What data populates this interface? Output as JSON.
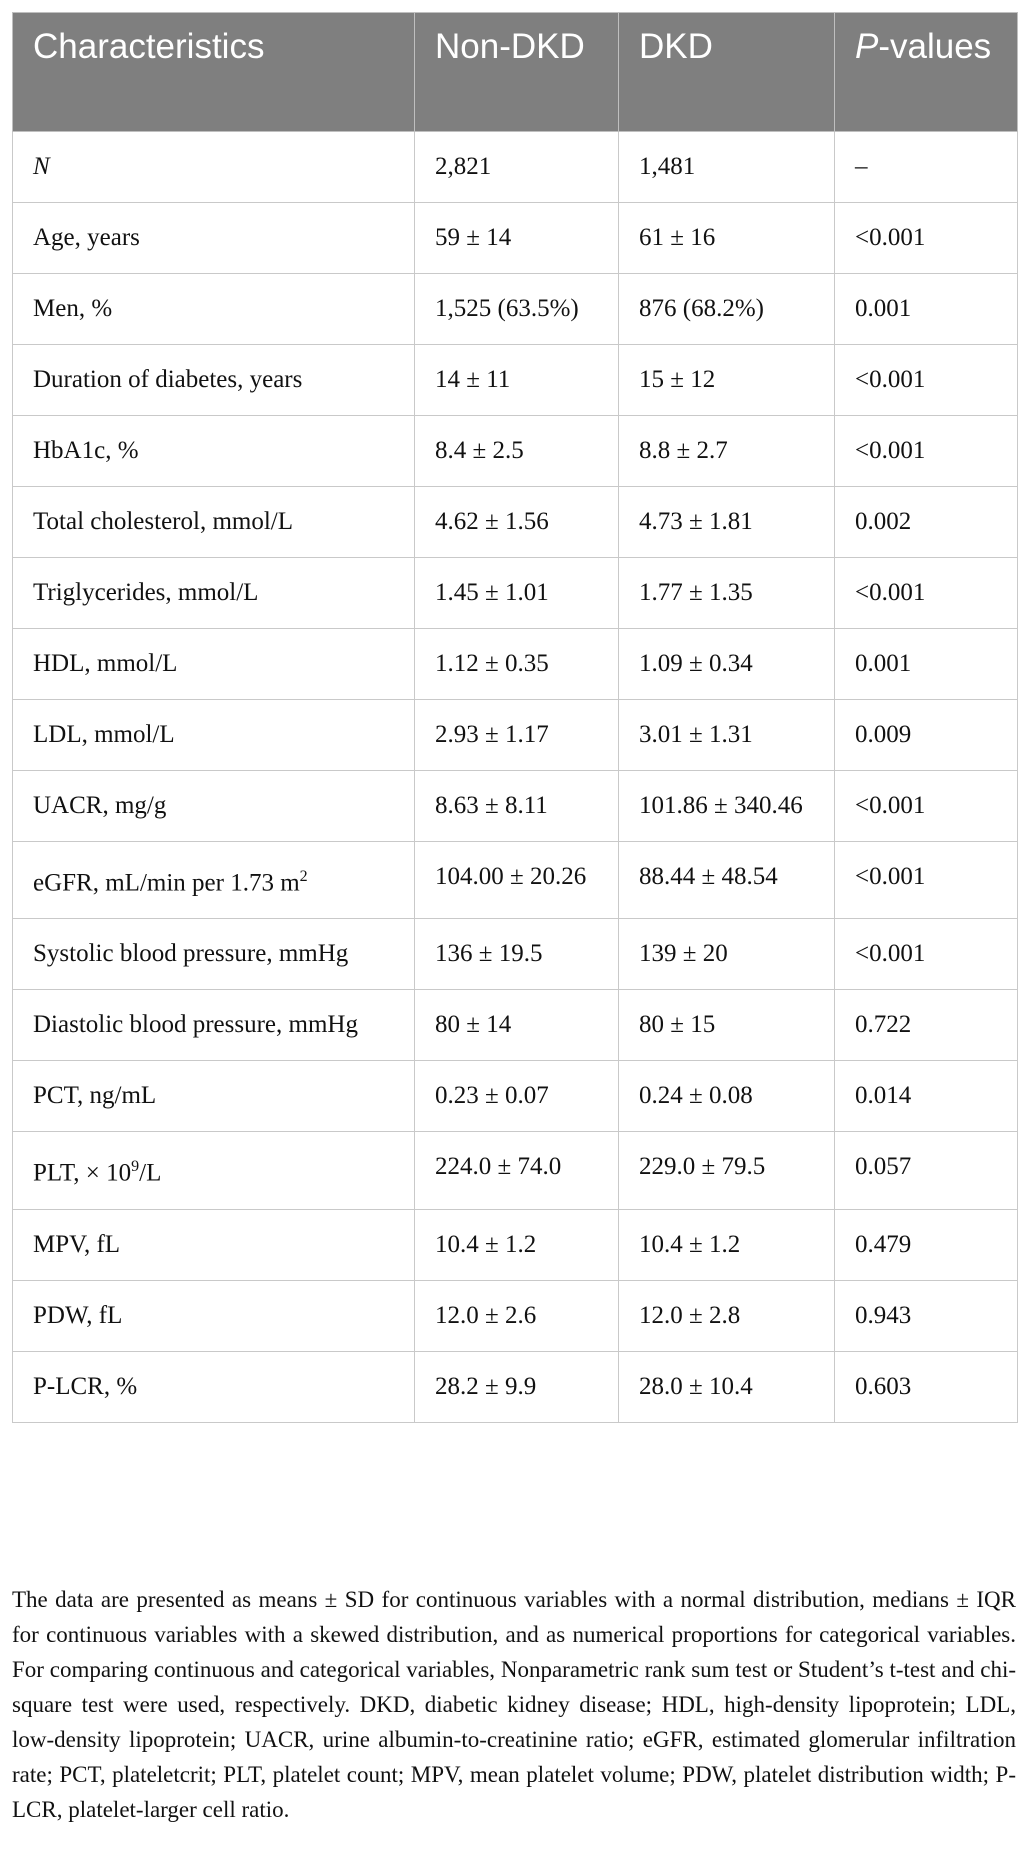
{
  "table": {
    "headers": {
      "characteristics": "Characteristics",
      "non_dkd": "Non-DKD",
      "dkd": "DKD",
      "p_letter": "P",
      "p_rest": "-values"
    },
    "rows": [
      {
        "label": "N",
        "non_dkd": "2,821",
        "dkd": "1,481",
        "p": "–",
        "italic": true
      },
      {
        "label": "Age, years",
        "non_dkd": "59 ± 14",
        "dkd": "61 ± 16",
        "p": "<0.001"
      },
      {
        "label": "Men, %",
        "non_dkd": "1,525 (63.5%)",
        "dkd": "876 (68.2%)",
        "p": "0.001"
      },
      {
        "label": "Duration of diabetes, years",
        "non_dkd": "14 ± 11",
        "dkd": "15 ± 12",
        "p": "<0.001"
      },
      {
        "label": "HbA1c, %",
        "non_dkd": "8.4 ± 2.5",
        "dkd": "8.8 ± 2.7",
        "p": "<0.001"
      },
      {
        "label": "Total cholesterol, mmol/L",
        "non_dkd": "4.62 ± 1.56",
        "dkd": "4.73 ± 1.81",
        "p": "0.002"
      },
      {
        "label": "Triglycerides, mmol/L",
        "non_dkd": "1.45 ± 1.01",
        "dkd": "1.77 ± 1.35",
        "p": "<0.001"
      },
      {
        "label": "HDL, mmol/L",
        "non_dkd": "1.12 ± 0.35",
        "dkd": "1.09 ± 0.34",
        "p": "0.001"
      },
      {
        "label": "LDL, mmol/L",
        "non_dkd": "2.93 ± 1.17",
        "dkd": "3.01 ± 1.31",
        "p": "0.009"
      },
      {
        "label": "UACR, mg/g",
        "non_dkd": "8.63 ± 8.11",
        "dkd": "101.86 ± 340.46",
        "p": "<0.001"
      },
      {
        "label": "eGFR, mL/min per 1.73 m",
        "label_sup": "2",
        "non_dkd": "104.00 ± 20.26",
        "dkd": "88.44 ± 48.54",
        "p": "<0.001"
      },
      {
        "label": "Systolic blood pressure, mmHg",
        "non_dkd": "136 ± 19.5",
        "dkd": "139 ± 20",
        "p": "<0.001"
      },
      {
        "label": "Diastolic blood pressure, mmHg",
        "non_dkd": "80 ± 14",
        "dkd": "80 ± 15",
        "p": "0.722"
      },
      {
        "label": "PCT, ng/mL",
        "non_dkd": "0.23 ± 0.07",
        "dkd": "0.24 ± 0.08",
        "p": "0.014"
      },
      {
        "label": "PLT, × 10",
        "label_sup": "9",
        "label_after": "/L",
        "non_dkd": "224.0 ± 74.0",
        "dkd": "229.0 ± 79.5",
        "p": "0.057"
      },
      {
        "label": "MPV, fL",
        "non_dkd": "10.4 ± 1.2",
        "dkd": "10.4 ± 1.2",
        "p": "0.479"
      },
      {
        "label": "PDW, fL",
        "non_dkd": "12.0 ± 2.6",
        "dkd": "12.0 ± 2.8",
        "p": "0.943"
      },
      {
        "label": "P-LCR, %",
        "non_dkd": "28.2 ± 9.9",
        "dkd": "28.0 ± 10.4",
        "p": "0.603"
      }
    ]
  },
  "footnote": "The data are presented as means ± SD for continuous variables with a normal distribution, medians ± IQR for continuous variables with a skewed distribution, and as numerical proportions for categorical variables. For comparing continuous and categorical variables, Nonparametric rank sum test or Student’s t-test and chi-square test were used, respectively. DKD, diabetic kidney disease; HDL, high-density lipoprotein; LDL, low-density lipoprotein; UACR, urine albumin-to-creatinine ratio; eGFR, estimated glomerular infiltration rate; PCT, plateletcrit; PLT, platelet count; MPV, mean platelet volume; PDW, platelet distribution width; P-LCR, platelet-larger cell ratio."
}
